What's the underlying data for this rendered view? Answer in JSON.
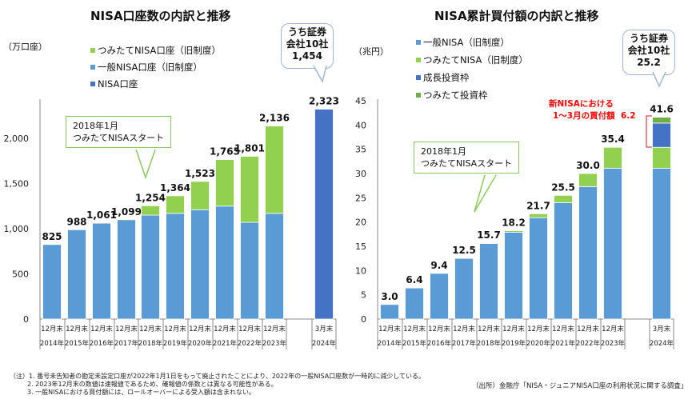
{
  "chart_data": [
    {
      "type": "bar",
      "stacked": true,
      "title": "NISA口座数の内訳と推移",
      "ylabel": "（万口座）",
      "ylim": [
        0,
        2400
      ],
      "yticks": [
        0,
        500,
        1000,
        1500,
        2000
      ],
      "ytick_labels": [
        "0",
        "500",
        "1,000",
        "1,500",
        "2,000"
      ],
      "categories": [
        {
          "top": "12月末",
          "bottom": "2014年"
        },
        {
          "top": "12月末",
          "bottom": "2015年"
        },
        {
          "top": "12月末",
          "bottom": "2016年"
        },
        {
          "top": "12月末",
          "bottom": "2017年"
        },
        {
          "top": "12月末",
          "bottom": "2018年"
        },
        {
          "top": "12月末",
          "bottom": "2019年"
        },
        {
          "top": "12月末",
          "bottom": "2020年"
        },
        {
          "top": "12月末",
          "bottom": "2021年"
        },
        {
          "top": "12月末",
          "bottom": "2022年"
        },
        {
          "top": "12月末",
          "bottom": "2023年"
        },
        {
          "top": "3月末",
          "bottom": "2024年"
        }
      ],
      "series": [
        {
          "name": "一般NISA口座（旧制度）",
          "color": "#5B9BD5",
          "values": [
            825,
            988,
            1061,
            1099,
            1150,
            1170,
            1210,
            1250,
            1070,
            1170,
            0
          ]
        },
        {
          "name": "つみたてNISA口座（旧制度）",
          "color": "#92D050",
          "values": [
            0,
            0,
            0,
            0,
            104,
            194,
            313,
            515,
            731,
            966,
            0
          ]
        },
        {
          "name": "NISA口座",
          "color": "#4472C4",
          "values": [
            0,
            0,
            0,
            0,
            0,
            0,
            0,
            0,
            0,
            0,
            2323
          ]
        }
      ],
      "legend_order": [
        1,
        0,
        2
      ],
      "legend_placement": "top-left",
      "totals": [
        "825",
        "988",
        "1,061",
        "1,099",
        "1,254",
        "1,364",
        "1,523",
        "1,765",
        "1,801",
        "2,136",
        "2,323"
      ],
      "annotations": {
        "callout": {
          "line1": "2018年1月",
          "line2": "つみたてNISAスタート"
        },
        "bubble": {
          "line1": "うち証券",
          "line2": "会社10社",
          "value": "1,454"
        }
      }
    },
    {
      "type": "bar",
      "stacked": true,
      "title": "NISA累計買付額の内訳と推移",
      "ylabel": "（兆円）",
      "ylim": [
        0,
        45
      ],
      "yticks": [
        0,
        5,
        10,
        15,
        20,
        25,
        30,
        35,
        40,
        45
      ],
      "ytick_labels": [
        "0",
        "5",
        "10",
        "15",
        "20",
        "25",
        "30",
        "35",
        "40",
        "45"
      ],
      "categories": [
        {
          "top": "12月末",
          "bottom": "2014年"
        },
        {
          "top": "12月末",
          "bottom": "2015年"
        },
        {
          "top": "12月末",
          "bottom": "2016年"
        },
        {
          "top": "12月末",
          "bottom": "2017年"
        },
        {
          "top": "12月末",
          "bottom": "2018年"
        },
        {
          "top": "12月末",
          "bottom": "2019年"
        },
        {
          "top": "12月末",
          "bottom": "2020年"
        },
        {
          "top": "12月末",
          "bottom": "2021年"
        },
        {
          "top": "12月末",
          "bottom": "2022年"
        },
        {
          "top": "12月末",
          "bottom": "2023年"
        },
        {
          "top": "3月末",
          "bottom": "2024年"
        }
      ],
      "series": [
        {
          "name": "一般NISA（旧制度）",
          "color": "#5B9BD5",
          "values": [
            3.0,
            6.4,
            9.4,
            12.5,
            15.6,
            17.9,
            20.9,
            24.0,
            27.3,
            31.1,
            31.1
          ]
        },
        {
          "name": "つみたてNISA（旧制度）",
          "color": "#92D050",
          "values": [
            0,
            0,
            0,
            0,
            0.1,
            0.3,
            0.8,
            1.5,
            2.7,
            4.3,
            4.3
          ]
        },
        {
          "name": "成長投資枠",
          "color": "#4472C4",
          "values": [
            0,
            0,
            0,
            0,
            0,
            0,
            0,
            0,
            0,
            0,
            5.0
          ]
        },
        {
          "name": "つみたて投資枠",
          "color": "#70AD47",
          "values": [
            0,
            0,
            0,
            0,
            0,
            0,
            0,
            0,
            0,
            0,
            1.2
          ]
        }
      ],
      "legend_order": [
        0,
        1,
        2,
        3
      ],
      "legend_placement": "top-left",
      "totals": [
        "3.0",
        "6.4",
        "9.4",
        "12.5",
        "15.7",
        "18.2",
        "21.7",
        "25.5",
        "30.0",
        "35.4",
        "41.6"
      ],
      "annotations": {
        "callout": {
          "line1": "2018年1月",
          "line2": "つみたてNISAスタート"
        },
        "bubble": {
          "line1": "うち証券",
          "line2": "会社10社",
          "value": "25.2"
        },
        "red_note": {
          "line1": "新NISAにおける",
          "line2": "1～3月の買付額",
          "value": "6.2",
          "color": "#FF0000"
        }
      }
    }
  ],
  "notes": {
    "label": "（注）",
    "items": [
      "1. 番号未告知者の勘定未設定口座が2022年1月1日をもって廃止されたことにより、2022年の一般NISA口座数が一時的に減少している。",
      "2. 2023年12月末の数値は速報値であるため、確報値の係数とは異なる可能性がある。",
      "3. 一般NISAにおける買付額には、ロールオーバーによる受入額は含まれない。"
    ],
    "source": "（出所）金融庁「NISA・ジュニアNISA口座の利用状況に関する調査」"
  }
}
